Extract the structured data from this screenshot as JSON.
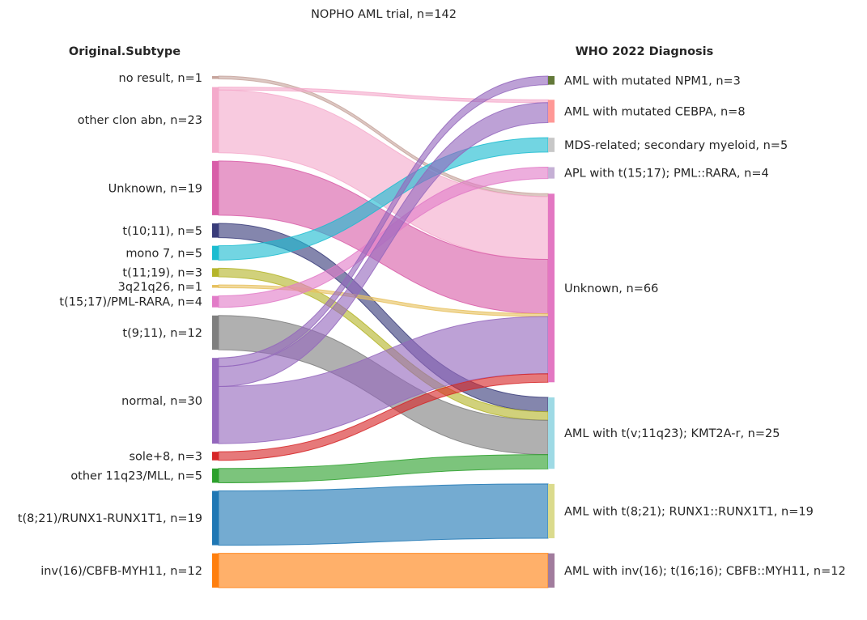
{
  "title": "NOPHO AML trial, n=142",
  "left_header": "Original.Subtype",
  "right_header": "WHO 2022 Diagnosis",
  "left_nodes": [
    {
      "id": "no_result",
      "label": "no result, n=1",
      "n": 1,
      "color": "#c7a59d"
    },
    {
      "id": "other_clon",
      "label": "other clon abn, n=23",
      "n": 23,
      "color": "#f4aacb"
    },
    {
      "id": "unknown_l",
      "label": "Unknown, n=19",
      "n": 19,
      "color": "#d85ea8"
    },
    {
      "id": "t10_11",
      "label": "t(10;11), n=5",
      "n": 5,
      "color": "#393c7a"
    },
    {
      "id": "mono7",
      "label": "mono 7, n=5",
      "n": 5,
      "color": "#1bbcd0"
    },
    {
      "id": "t11_19",
      "label": "t(11;19), n=3",
      "n": 3,
      "color": "#b5b52a"
    },
    {
      "id": "3q21q26",
      "label": "3q21q26, n=1",
      "n": 1,
      "color": "#e7c15f"
    },
    {
      "id": "t15_17_l",
      "label": "t(15;17)/PML-RARA, n=4",
      "n": 4,
      "color": "#e27cc8"
    },
    {
      "id": "t9_11",
      "label": "t(9;11), n=12",
      "n": 12,
      "color": "#7f7f7f"
    },
    {
      "id": "normal",
      "label": "normal, n=30",
      "n": 30,
      "color": "#9467bd"
    },
    {
      "id": "sole8",
      "label": "sole+8, n=3",
      "n": 3,
      "color": "#d62728"
    },
    {
      "id": "mll",
      "label": "other 11q23/MLL, n=5",
      "n": 5,
      "color": "#2ca02c"
    },
    {
      "id": "t8_21_l",
      "label": "t(8;21)/RUNX1-RUNX1T1, n=19",
      "n": 19,
      "color": "#1f77b4"
    },
    {
      "id": "inv16_l",
      "label": "inv(16)/CBFB-MYH11, n=12",
      "n": 12,
      "color": "#ff7f0e"
    }
  ],
  "right_nodes": [
    {
      "id": "npm1",
      "label": "AML with mutated NPM1, n=3",
      "n": 3,
      "color": "#637939"
    },
    {
      "id": "cebpa",
      "label": "AML with mutated CEBPA, n=8",
      "n": 8,
      "color": "#ff9896"
    },
    {
      "id": "mds",
      "label": "MDS-related; secondary myeloid, n=5",
      "n": 5,
      "color": "#c7c7c7"
    },
    {
      "id": "apl",
      "label": "APL with t(15;17); PML::RARA, n=4",
      "n": 4,
      "color": "#c5b0d5"
    },
    {
      "id": "unknown_r",
      "label": "Unknown, n=66",
      "n": 66,
      "color": "#e377c2"
    },
    {
      "id": "kmt2a",
      "label": "AML with t(v;11q23); KMT2A-r, n=25",
      "n": 25,
      "color": "#9edae5"
    },
    {
      "id": "t8_21_r",
      "label": "AML with t(8;21); RUNX1::RUNX1T1, n=19",
      "n": 19,
      "color": "#dbdb8d"
    },
    {
      "id": "inv16_r",
      "label": "AML with inv(16); t(16;16); CBFB::MYH11, n=12",
      "n": 12,
      "color": "#a17c9d"
    }
  ],
  "flows": [
    {
      "source": "no_result",
      "target": "unknown_r",
      "n": 1
    },
    {
      "source": "other_clon",
      "target": "cebpa",
      "n": 1
    },
    {
      "source": "other_clon",
      "target": "unknown_r",
      "n": 22
    },
    {
      "source": "unknown_l",
      "target": "unknown_r",
      "n": 19
    },
    {
      "source": "t10_11",
      "target": "kmt2a",
      "n": 5
    },
    {
      "source": "mono7",
      "target": "mds",
      "n": 5
    },
    {
      "source": "t11_19",
      "target": "kmt2a",
      "n": 3
    },
    {
      "source": "3q21q26",
      "target": "unknown_r",
      "n": 1
    },
    {
      "source": "t15_17_l",
      "target": "apl",
      "n": 4
    },
    {
      "source": "t9_11",
      "target": "kmt2a",
      "n": 12
    },
    {
      "source": "normal",
      "target": "npm1",
      "n": 3
    },
    {
      "source": "normal",
      "target": "cebpa",
      "n": 7
    },
    {
      "source": "normal",
      "target": "unknown_r",
      "n": 20
    },
    {
      "source": "sole8",
      "target": "unknown_r",
      "n": 3
    },
    {
      "source": "mll",
      "target": "kmt2a",
      "n": 5
    },
    {
      "source": "t8_21_l",
      "target": "t8_21_r",
      "n": 19
    },
    {
      "source": "inv16_l",
      "target": "inv16_r",
      "n": 12
    }
  ]
}
